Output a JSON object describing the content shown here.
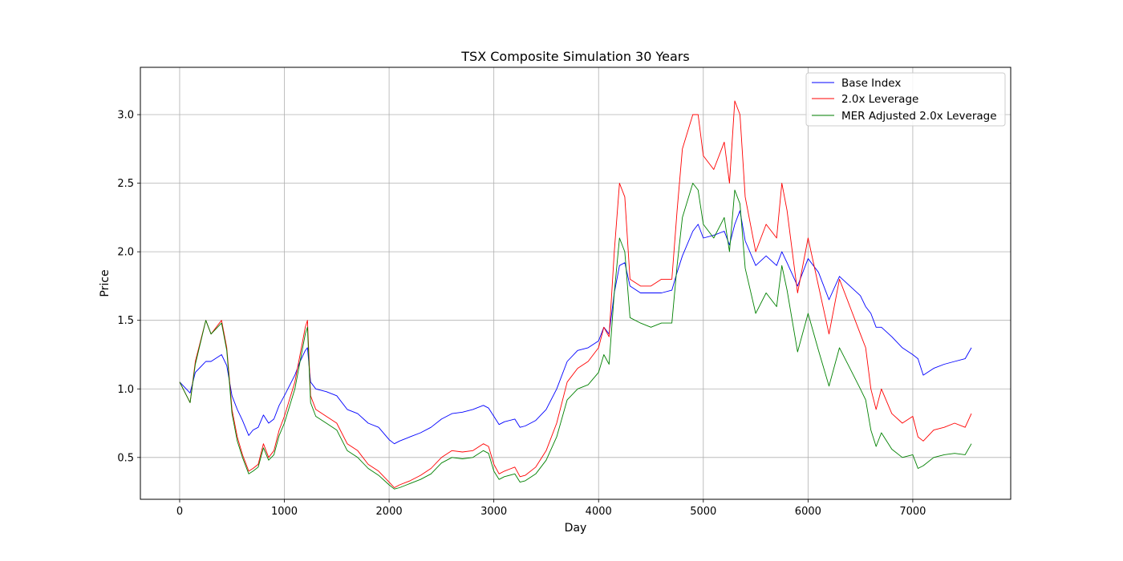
{
  "chart_data": {
    "type": "line",
    "title": "TSX Composite Simulation 30 Years",
    "xlabel": "Day",
    "ylabel": "Price",
    "xlim": [
      -375,
      7935
    ],
    "ylim": [
      0.195,
      3.345
    ],
    "xticks": [
      0,
      1000,
      2000,
      3000,
      4000,
      5000,
      6000,
      7000
    ],
    "xtick_labels": [
      "0",
      "1000",
      "2000",
      "3000",
      "4000",
      "5000",
      "6000",
      "7000"
    ],
    "yticks": [
      0.5,
      1.0,
      1.5,
      2.0,
      2.5,
      3.0
    ],
    "ytick_labels": [
      "0.5",
      "1.0",
      "1.5",
      "2.0",
      "2.5",
      "3.0"
    ],
    "grid": true,
    "legend_position": "top-right",
    "series": [
      {
        "name": "Base Index",
        "color": "#0000ff",
        "x": [
          0,
          100,
          150,
          250,
          300,
          400,
          450,
          500,
          550,
          600,
          660,
          700,
          750,
          800,
          850,
          900,
          950,
          1000,
          1100,
          1150,
          1200,
          1220,
          1250,
          1300,
          1400,
          1500,
          1600,
          1700,
          1800,
          1900,
          2000,
          2050,
          2100,
          2200,
          2300,
          2400,
          2500,
          2600,
          2700,
          2800,
          2900,
          2950,
          3000,
          3050,
          3100,
          3200,
          3250,
          3300,
          3400,
          3500,
          3600,
          3700,
          3800,
          3900,
          4000,
          4050,
          4100,
          4150,
          4200,
          4250,
          4300,
          4400,
          4500,
          4600,
          4700,
          4750,
          4800,
          4900,
          4950,
          5000,
          5100,
          5200,
          5250,
          5300,
          5350,
          5400,
          5500,
          5600,
          5700,
          5750,
          5800,
          5900,
          6000,
          6100,
          6200,
          6300,
          6400,
          6500,
          6550,
          6600,
          6650,
          6700,
          6800,
          6900,
          7000,
          7050,
          7100,
          7200,
          7300,
          7400,
          7500,
          7560
        ],
        "values": [
          1.05,
          0.97,
          1.12,
          1.2,
          1.2,
          1.25,
          1.17,
          0.95,
          0.85,
          0.77,
          0.66,
          0.7,
          0.72,
          0.81,
          0.75,
          0.78,
          0.88,
          0.95,
          1.1,
          1.2,
          1.28,
          1.3,
          1.05,
          1.0,
          0.98,
          0.95,
          0.85,
          0.82,
          0.75,
          0.72,
          0.63,
          0.6,
          0.62,
          0.65,
          0.68,
          0.72,
          0.78,
          0.82,
          0.83,
          0.85,
          0.88,
          0.86,
          0.8,
          0.74,
          0.76,
          0.78,
          0.72,
          0.73,
          0.77,
          0.85,
          1.0,
          1.2,
          1.28,
          1.3,
          1.35,
          1.45,
          1.4,
          1.7,
          1.9,
          1.92,
          1.75,
          1.7,
          1.7,
          1.7,
          1.72,
          1.85,
          1.97,
          2.15,
          2.2,
          2.1,
          2.12,
          2.15,
          2.05,
          2.2,
          2.3,
          2.08,
          1.9,
          1.97,
          1.9,
          2.0,
          1.92,
          1.75,
          1.95,
          1.85,
          1.65,
          1.82,
          1.75,
          1.68,
          1.6,
          1.55,
          1.45,
          1.45,
          1.38,
          1.3,
          1.25,
          1.22,
          1.1,
          1.15,
          1.18,
          1.2,
          1.22,
          1.3
        ]
      },
      {
        "name": "2.0x Leverage",
        "color": "#ff0000",
        "x": [
          0,
          100,
          150,
          250,
          300,
          400,
          450,
          500,
          550,
          600,
          660,
          700,
          750,
          800,
          850,
          900,
          950,
          1000,
          1100,
          1150,
          1200,
          1220,
          1250,
          1300,
          1400,
          1500,
          1600,
          1700,
          1800,
          1900,
          2000,
          2050,
          2100,
          2200,
          2300,
          2400,
          2500,
          2600,
          2700,
          2800,
          2900,
          2950,
          3000,
          3050,
          3100,
          3200,
          3250,
          3300,
          3400,
          3500,
          3600,
          3700,
          3800,
          3900,
          4000,
          4050,
          4100,
          4150,
          4200,
          4250,
          4300,
          4400,
          4500,
          4600,
          4700,
          4750,
          4800,
          4900,
          4950,
          5000,
          5100,
          5200,
          5250,
          5300,
          5350,
          5400,
          5500,
          5600,
          5700,
          5750,
          5800,
          5900,
          6000,
          6100,
          6200,
          6300,
          6400,
          6500,
          6550,
          6600,
          6650,
          6700,
          6800,
          6900,
          7000,
          7050,
          7100,
          7200,
          7300,
          7400,
          7500,
          7560
        ],
        "values": [
          1.05,
          0.9,
          1.2,
          1.5,
          1.4,
          1.5,
          1.3,
          0.85,
          0.65,
          0.52,
          0.4,
          0.42,
          0.45,
          0.6,
          0.5,
          0.55,
          0.7,
          0.8,
          1.05,
          1.25,
          1.45,
          1.5,
          0.95,
          0.85,
          0.8,
          0.75,
          0.6,
          0.55,
          0.45,
          0.4,
          0.32,
          0.28,
          0.3,
          0.33,
          0.37,
          0.42,
          0.5,
          0.55,
          0.54,
          0.55,
          0.6,
          0.58,
          0.45,
          0.38,
          0.4,
          0.43,
          0.36,
          0.37,
          0.43,
          0.55,
          0.75,
          1.05,
          1.15,
          1.2,
          1.3,
          1.45,
          1.38,
          2.0,
          2.5,
          2.4,
          1.8,
          1.75,
          1.75,
          1.8,
          1.8,
          2.3,
          2.75,
          3.0,
          3.0,
          2.7,
          2.6,
          2.8,
          2.5,
          3.1,
          3.0,
          2.4,
          2.0,
          2.2,
          2.1,
          2.5,
          2.3,
          1.7,
          2.1,
          1.75,
          1.4,
          1.8,
          1.6,
          1.4,
          1.3,
          1.0,
          0.85,
          1.0,
          0.82,
          0.75,
          0.8,
          0.65,
          0.62,
          0.7,
          0.72,
          0.75,
          0.72,
          0.82
        ]
      },
      {
        "name": "MER Adjusted 2.0x Leverage",
        "color": "#008000",
        "x": [
          0,
          100,
          150,
          250,
          300,
          400,
          450,
          500,
          550,
          600,
          660,
          700,
          750,
          800,
          850,
          900,
          950,
          1000,
          1100,
          1150,
          1200,
          1220,
          1250,
          1300,
          1400,
          1500,
          1600,
          1700,
          1800,
          1900,
          2000,
          2050,
          2100,
          2200,
          2300,
          2400,
          2500,
          2600,
          2700,
          2800,
          2900,
          2950,
          3000,
          3050,
          3100,
          3200,
          3250,
          3300,
          3400,
          3500,
          3600,
          3700,
          3800,
          3900,
          4000,
          4050,
          4100,
          4150,
          4200,
          4250,
          4300,
          4400,
          4500,
          4600,
          4700,
          4750,
          4800,
          4900,
          4950,
          5000,
          5100,
          5200,
          5250,
          5300,
          5350,
          5400,
          5500,
          5600,
          5700,
          5750,
          5800,
          5900,
          6000,
          6100,
          6200,
          6300,
          6400,
          6500,
          6550,
          6600,
          6650,
          6700,
          6800,
          6900,
          7000,
          7050,
          7100,
          7200,
          7300,
          7400,
          7500,
          7560
        ],
        "values": [
          1.05,
          0.9,
          1.18,
          1.5,
          1.4,
          1.48,
          1.28,
          0.82,
          0.62,
          0.5,
          0.38,
          0.4,
          0.43,
          0.57,
          0.48,
          0.52,
          0.66,
          0.75,
          1.0,
          1.2,
          1.4,
          1.45,
          0.9,
          0.8,
          0.75,
          0.7,
          0.55,
          0.5,
          0.42,
          0.37,
          0.3,
          0.27,
          0.28,
          0.31,
          0.34,
          0.38,
          0.46,
          0.5,
          0.49,
          0.5,
          0.55,
          0.53,
          0.4,
          0.34,
          0.36,
          0.38,
          0.32,
          0.33,
          0.38,
          0.48,
          0.65,
          0.92,
          1.0,
          1.03,
          1.12,
          1.25,
          1.18,
          1.7,
          2.1,
          2.0,
          1.52,
          1.48,
          1.45,
          1.48,
          1.48,
          1.9,
          2.25,
          2.5,
          2.45,
          2.2,
          2.1,
          2.25,
          2.0,
          2.45,
          2.35,
          1.88,
          1.55,
          1.7,
          1.6,
          1.9,
          1.72,
          1.27,
          1.55,
          1.28,
          1.02,
          1.3,
          1.15,
          1.0,
          0.92,
          0.7,
          0.58,
          0.68,
          0.56,
          0.5,
          0.52,
          0.42,
          0.44,
          0.5,
          0.52,
          0.53,
          0.52,
          0.6
        ]
      }
    ]
  }
}
